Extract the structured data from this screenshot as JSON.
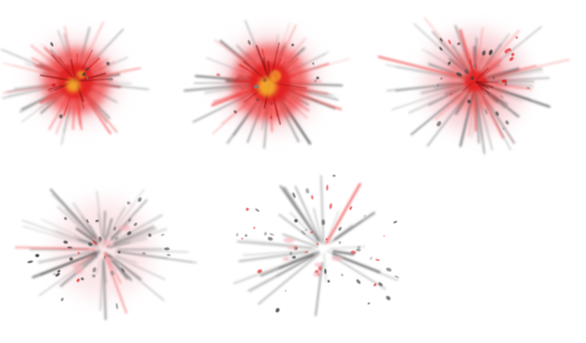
{
  "sprite_sheet": {
    "background": "#ffffff",
    "frame_count": 5,
    "palette": {
      "core_yellow": "#f5b82e",
      "core_red": "#e32424",
      "glow_red": "#f03a3a",
      "pink_haze": "#f4b9c0",
      "debris_dark": "#3a3a3a",
      "debris_grey": "#7c7c7c"
    },
    "frames": [
      {
        "stage": "ignition"
      },
      {
        "stage": "peak"
      },
      {
        "stage": "dissipating"
      },
      {
        "stage": "smoke"
      },
      {
        "stage": "debris"
      }
    ]
  }
}
